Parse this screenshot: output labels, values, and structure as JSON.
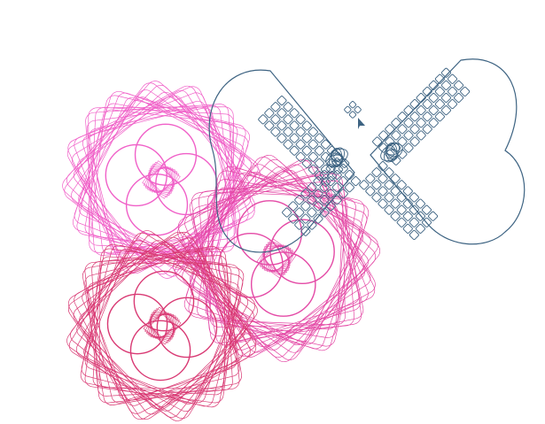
{
  "canvas": {
    "background": "#ffffff"
  },
  "palette": {
    "pink_light": "#f060c8",
    "pink_mid": "#e44aa6",
    "pink_dark": "#d93a74",
    "blue_gray": "#3d6382"
  },
  "shapes": [
    {
      "kind": "spiro-flower",
      "color": "pink_light",
      "name": "pink-spirograph-flower-top-left"
    },
    {
      "kind": "spiro-flower",
      "color": "pink_mid",
      "name": "pink-spirograph-flower-right"
    },
    {
      "kind": "spiro-flower",
      "color": "pink_dark",
      "name": "crimson-spirograph-flower-bottom-left"
    },
    {
      "kind": "heart-chevron-pattern",
      "color": "blue_gray",
      "name": "blue-heart-chevron-pattern"
    }
  ],
  "icons": {
    "cursor": "arrow-cursor-icon"
  }
}
